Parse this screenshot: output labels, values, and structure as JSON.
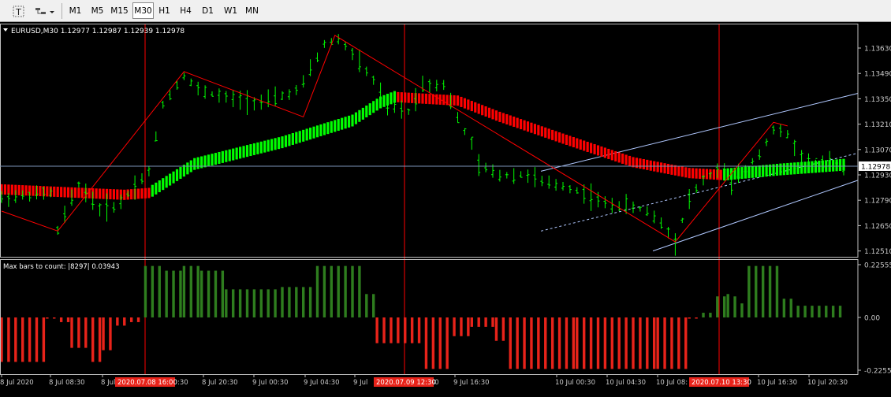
{
  "toolbar": {
    "tools": [
      {
        "name": "text-tool-icon"
      },
      {
        "name": "shapes-menu-icon"
      }
    ],
    "timeframes": [
      {
        "label": "M1",
        "active": false
      },
      {
        "label": "M5",
        "active": false
      },
      {
        "label": "M15",
        "active": false
      },
      {
        "label": "M30",
        "active": true
      },
      {
        "label": "H1",
        "active": false
      },
      {
        "label": "H4",
        "active": false
      },
      {
        "label": "D1",
        "active": false
      },
      {
        "label": "W1",
        "active": false
      },
      {
        "label": "MN",
        "active": false
      }
    ]
  },
  "chart": {
    "symbol_line": "EURUSD,M30  1.12977 1.12987 1.12939 1.12978",
    "current_price_label": "1.12978",
    "price_ticks": [
      "1.13630",
      "1.13490",
      "1.13350",
      "1.13210",
      "1.13070",
      "1.12930",
      "1.12790",
      "1.12650",
      "1.12510"
    ],
    "colors": {
      "background": "#000000",
      "bars": "#00ff00",
      "ma_up": "#00ff00",
      "ma_down": "#ff0000",
      "zigzag": "#ff0000",
      "channel": "#b0c8ff",
      "period_separator": "#ff0000",
      "histogram_up": "#2e7d1e",
      "histogram_down": "#e8231a"
    }
  },
  "indicator": {
    "label": "Max bars to count: |8297|  0.03943",
    "ticks": [
      "0.22555",
      "0.00",
      "-0.22555"
    ]
  },
  "time_axis": {
    "labels": [
      "8 Jul 2020",
      "8 Jul 08:30",
      "8 Jul",
      "8 Jul 20:30",
      "9 Jul 00:30",
      "9 Jul 04:30",
      "9 Jul",
      "9 Jul 16:30",
      "10 Jul 00:30",
      "10 Jul 04:30",
      "10 Jul 08:",
      "10 Jul 16:30",
      "10 Jul 20:30"
    ],
    "separator_labels": [
      "2020.07.08 16:00",
      "2020.07.09 12:30",
      "2020.07.10 13:30"
    ],
    "partial_labels": [
      ":30",
      ":30"
    ]
  }
}
